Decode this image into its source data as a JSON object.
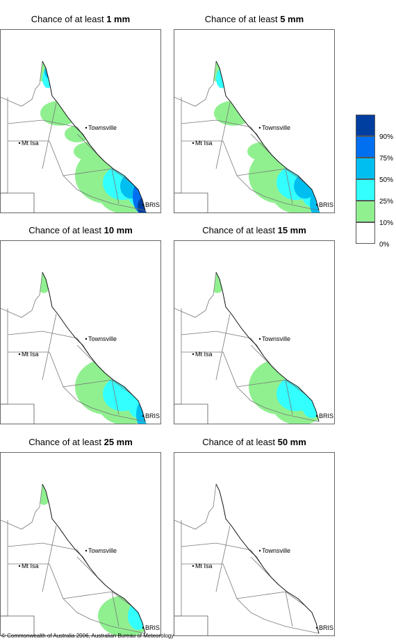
{
  "panels": [
    {
      "prefix": "Chance of at least",
      "amount": "1 mm",
      "intensity": 6
    },
    {
      "prefix": "Chance of at least",
      "amount": "5 mm",
      "intensity": 4
    },
    {
      "prefix": "Chance of at least",
      "amount": "10 mm",
      "intensity": 3
    },
    {
      "prefix": "Chance of at least",
      "amount": "15 mm",
      "intensity": 2.5
    },
    {
      "prefix": "Chance of at least",
      "amount": "25 mm",
      "intensity": 1.5
    },
    {
      "prefix": "Chance of at least",
      "amount": "50 mm",
      "intensity": 0.5
    }
  ],
  "places": {
    "townsville": "Townsville",
    "mt_isa": "Mt Isa",
    "brisbane": "BRIS"
  },
  "legend": {
    "labels": [
      "90%",
      "75%",
      "50%",
      "25%",
      "10%",
      "0%"
    ],
    "colors": [
      "#003fa0",
      "#0070f0",
      "#00bff0",
      "#33ffff",
      "#90f090",
      "#ffffff"
    ]
  },
  "copyright": "© Commonwealth of Australia 2006, Australian Bureau of Meteorology"
}
